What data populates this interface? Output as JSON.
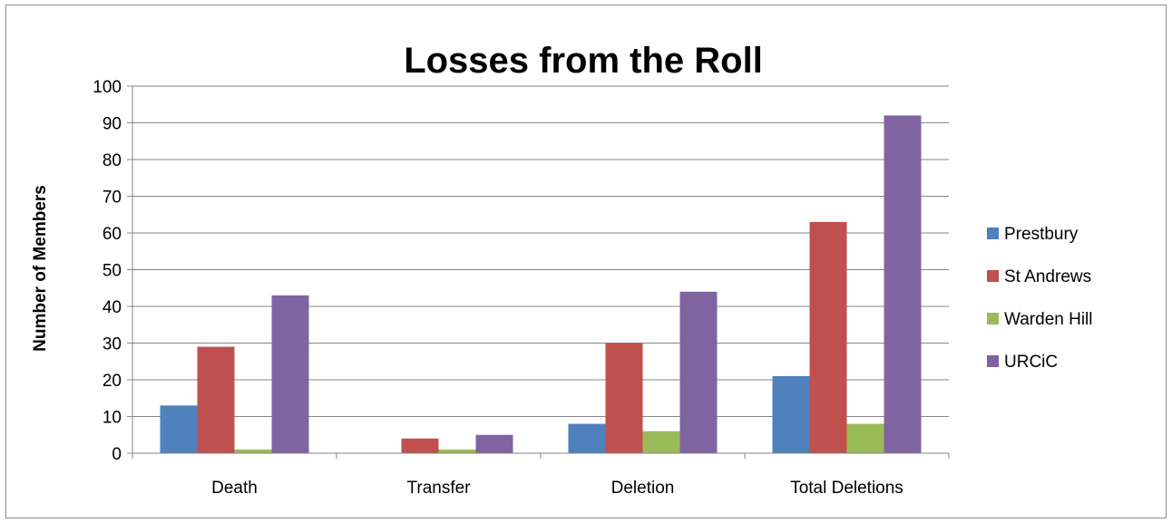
{
  "chart_data": {
    "type": "bar",
    "title": "Losses from the Roll",
    "xlabel": "",
    "ylabel": "Number of Members",
    "ylim": [
      0,
      100
    ],
    "yticks": [
      0,
      10,
      20,
      30,
      40,
      50,
      60,
      70,
      80,
      90,
      100
    ],
    "grid": true,
    "legend_position": "right",
    "categories": [
      "Death",
      "Transfer",
      "Deletion",
      "Total Deletions"
    ],
    "series": [
      {
        "name": "Prestbury",
        "color": "#4f81bd",
        "values": [
          13,
          0,
          8,
          21
        ]
      },
      {
        "name": "St Andrews",
        "color": "#c0504d",
        "values": [
          29,
          4,
          30,
          63
        ]
      },
      {
        "name": "Warden Hill",
        "color": "#9bbb59",
        "values": [
          1,
          1,
          6,
          8
        ]
      },
      {
        "name": "URCiC",
        "color": "#8064a2",
        "values": [
          43,
          5,
          44,
          92
        ]
      }
    ]
  }
}
